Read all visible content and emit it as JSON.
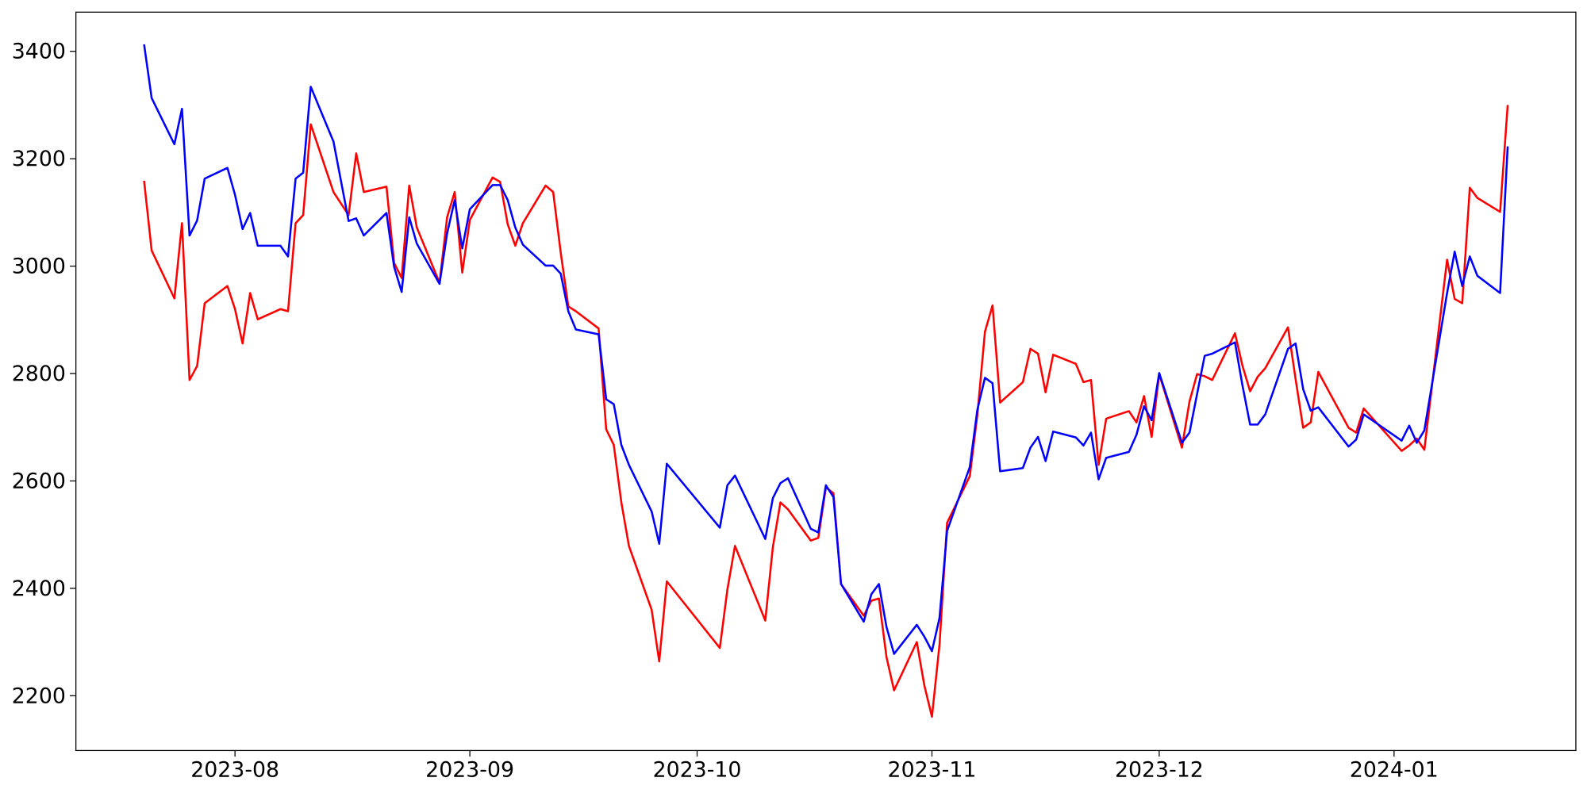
{
  "chart_data": {
    "type": "line",
    "x": [
      19558,
      19559,
      19562,
      19563,
      19564,
      19565,
      19566,
      19569,
      19570,
      19571,
      19572,
      19573,
      19576,
      19577,
      19578,
      19579,
      19580,
      19583,
      19585,
      19586,
      19587,
      19590,
      19591,
      19592,
      19593,
      19594,
      19597,
      19598,
      19599,
      19600,
      19601,
      19604,
      19605,
      19606,
      19607,
      19608,
      19611,
      19612,
      19613,
      19614,
      19615,
      19618,
      19619,
      19620,
      19621,
      19622,
      19625,
      19626,
      19627,
      19634,
      19635,
      19636,
      19640,
      19641,
      19642,
      19643,
      19646,
      19647,
      19648,
      19649,
      19650,
      19653,
      19654,
      19655,
      19656,
      19657,
      19660,
      19661,
      19662,
      19663,
      19664,
      19667,
      19668,
      19669,
      19670,
      19671,
      19674,
      19675,
      19676,
      19677,
      19678,
      19681,
      19682,
      19683,
      19684,
      19685,
      19688,
      19689,
      19690,
      19691,
      19692,
      19695,
      19696,
      19697,
      19698,
      19699,
      19702,
      19703,
      19704,
      19705,
      19706,
      19709,
      19710,
      19711,
      19712,
      19713,
      19717,
      19718,
      19719,
      19724,
      19725,
      19726,
      19727,
      19730,
      19731,
      19732,
      19733,
      19734,
      19737,
      19738
    ],
    "series": [
      {
        "color": "#ff0000",
        "values": [
          3159,
          3029,
          2940,
          3080,
          2788,
          2814,
          2931,
          2963,
          2920,
          2856,
          2950,
          2901,
          2920,
          2916,
          3080,
          3095,
          3264,
          3138,
          3095,
          3210,
          3138,
          3148,
          3006,
          2978,
          3150,
          3072,
          2969,
          3091,
          3138,
          2988,
          3086,
          3165,
          3157,
          3078,
          3038,
          3080,
          3150,
          3138,
          3025,
          2925,
          2916,
          2884,
          2696,
          2667,
          2560,
          2479,
          2360,
          2264,
          2413,
          2289,
          2398,
          2479,
          2340,
          2477,
          2560,
          2547,
          2489,
          2494,
          2588,
          2577,
          2408,
          2349,
          2377,
          2381,
          2272,
          2210,
          2300,
          2219,
          2161,
          2295,
          2522,
          2609,
          2724,
          2878,
          2927,
          2746,
          2784,
          2846,
          2837,
          2765,
          2835,
          2818,
          2784,
          2788,
          2630,
          2716,
          2730,
          2709,
          2758,
          2682,
          2799,
          2662,
          2748,
          2799,
          2795,
          2788,
          2875,
          2814,
          2767,
          2794,
          2810,
          2886,
          2790,
          2699,
          2709,
          2803,
          2699,
          2690,
          2735,
          2656,
          2666,
          2679,
          2658,
          3012,
          2939,
          2931,
          3146,
          3127,
          3101,
          3300
        ]
      },
      {
        "color": "#0000ff",
        "values": [
          3413,
          3313,
          3227,
          3293,
          3057,
          3085,
          3163,
          3183,
          3133,
          3069,
          3099,
          3038,
          3038,
          3018,
          3163,
          3174,
          3334,
          3232,
          3084,
          3089,
          3057,
          3099,
          2999,
          2952,
          3091,
          3042,
          2967,
          3061,
          3123,
          3033,
          3106,
          3151,
          3151,
          3123,
          3072,
          3040,
          3001,
          3001,
          2986,
          2916,
          2882,
          2873,
          2752,
          2743,
          2667,
          2630,
          2543,
          2483,
          2632,
          2513,
          2592,
          2610,
          2492,
          2568,
          2596,
          2605,
          2511,
          2504,
          2592,
          2570,
          2408,
          2338,
          2389,
          2408,
          2328,
          2278,
          2332,
          2310,
          2283,
          2345,
          2507,
          2626,
          2733,
          2792,
          2782,
          2618,
          2624,
          2662,
          2682,
          2637,
          2692,
          2681,
          2666,
          2690,
          2603,
          2643,
          2654,
          2686,
          2739,
          2713,
          2801,
          2671,
          2690,
          2762,
          2833,
          2837,
          2858,
          2777,
          2705,
          2705,
          2724,
          2846,
          2856,
          2771,
          2731,
          2737,
          2664,
          2677,
          2724,
          2675,
          2703,
          2671,
          2694,
          2950,
          3027,
          2963,
          3018,
          2982,
          2950,
          3223
        ]
      }
    ],
    "xlim": [
      19549,
      19747
    ],
    "xticks": [
      {
        "value": 19570,
        "label": "2023-08"
      },
      {
        "value": 19601,
        "label": "2023-09"
      },
      {
        "value": 19631,
        "label": "2023-10"
      },
      {
        "value": 19662,
        "label": "2023-11"
      },
      {
        "value": 19692,
        "label": "2023-12"
      },
      {
        "value": 19723,
        "label": "2024-01"
      }
    ],
    "ylim": [
      2098,
      3473
    ],
    "yticks": [
      2200,
      2400,
      2600,
      2800,
      3000,
      3200,
      3400
    ],
    "grid": false
  }
}
